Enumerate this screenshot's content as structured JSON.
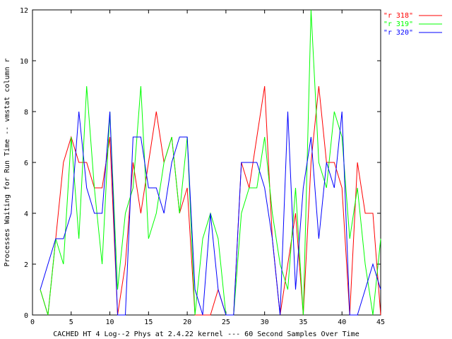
{
  "chart_data": {
    "type": "line",
    "title": "",
    "xlabel": "CACHED HT 4 Log--2 Phys at 2.4.22 kernel --- 60 Second Samples Over Time",
    "ylabel": "Processes Waiting for Run Time -- vmstat column r",
    "xlim": [
      0,
      45
    ],
    "ylim": [
      0,
      12
    ],
    "xticks": [
      0,
      5,
      10,
      15,
      20,
      25,
      30,
      35,
      40,
      45
    ],
    "yticks": [
      0,
      2,
      4,
      6,
      8,
      10,
      12
    ],
    "grid": false,
    "legend_position": "top-right",
    "series": [
      {
        "name": "\"r 318\"",
        "color": "#ff0000",
        "x": [
          1,
          2,
          3,
          4,
          5,
          6,
          7,
          8,
          9,
          10,
          11,
          12,
          13,
          14,
          15,
          16,
          17,
          18,
          19,
          20,
          21,
          22,
          23,
          24,
          25,
          26,
          27,
          28,
          29,
          30,
          31,
          32,
          33,
          34,
          35,
          36,
          37,
          38,
          39,
          40,
          41,
          42,
          43,
          44,
          45
        ],
        "y": [
          1,
          0,
          3,
          6,
          7,
          6,
          6,
          5,
          5,
          7,
          0,
          2,
          6,
          4,
          6,
          8,
          6,
          7,
          4,
          5,
          0,
          0,
          0,
          1,
          0,
          0,
          6,
          5,
          7,
          9,
          3,
          0,
          2,
          4,
          0,
          6,
          9,
          6,
          6,
          5,
          0,
          6,
          4,
          4,
          0
        ]
      },
      {
        "name": "\"r 319\"",
        "color": "#00ff00",
        "x": [
          1,
          2,
          3,
          4,
          5,
          6,
          7,
          8,
          9,
          10,
          11,
          12,
          13,
          14,
          15,
          16,
          17,
          18,
          19,
          20,
          21,
          22,
          23,
          24,
          25,
          26,
          27,
          28,
          29,
          30,
          31,
          32,
          33,
          34,
          35,
          36,
          37,
          38,
          39,
          40,
          41,
          42,
          43,
          44,
          45
        ],
        "y": [
          1,
          0,
          3,
          2,
          7,
          3,
          9,
          5,
          2,
          8,
          1,
          4,
          5,
          9,
          3,
          4,
          6,
          7,
          4,
          7,
          0,
          3,
          4,
          3,
          0,
          0,
          4,
          5,
          5,
          7,
          4,
          2,
          1,
          5,
          0,
          12,
          6,
          5,
          8,
          7,
          3,
          5,
          2,
          0,
          3
        ]
      },
      {
        "name": "\"r 320\"",
        "color": "#0000ff",
        "x": [
          1,
          2,
          3,
          4,
          5,
          6,
          7,
          8,
          9,
          10,
          11,
          12,
          13,
          14,
          15,
          16,
          17,
          18,
          19,
          20,
          21,
          22,
          23,
          24,
          25,
          26,
          27,
          28,
          29,
          30,
          31,
          32,
          33,
          34,
          35,
          36,
          37,
          38,
          39,
          40,
          41,
          42,
          43,
          44,
          45
        ],
        "y": [
          1,
          2,
          3,
          3,
          4,
          8,
          5,
          4,
          4,
          8,
          0,
          0,
          7,
          7,
          5,
          5,
          4,
          6,
          7,
          7,
          1,
          0,
          4,
          1,
          0,
          0,
          6,
          6,
          6,
          5,
          3,
          0,
          8,
          1,
          5,
          7,
          3,
          6,
          5,
          8,
          0,
          0,
          1,
          2,
          1
        ]
      }
    ]
  }
}
